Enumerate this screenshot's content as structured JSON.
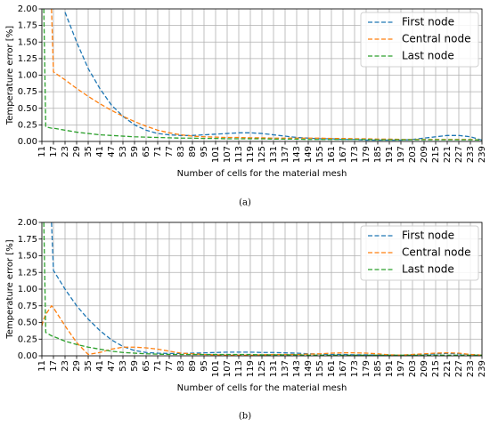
{
  "chart_data": [
    {
      "type": "line",
      "caption": "(a)",
      "xlabel": "Number of cells for the material mesh",
      "ylabel": "Temperature error [%]",
      "x": [
        11,
        12,
        13,
        16,
        17,
        23,
        29,
        35,
        41,
        47,
        53,
        59,
        65,
        71,
        77,
        83,
        89,
        95,
        101,
        107,
        113,
        119,
        125,
        131,
        137,
        143,
        149,
        155,
        161,
        167,
        173,
        179,
        185,
        191,
        197,
        203,
        209,
        215,
        221,
        227,
        233,
        239
      ],
      "xlim": [
        11,
        239
      ],
      "ylim": [
        0,
        2
      ],
      "xticks": [
        11,
        17,
        23,
        29,
        35,
        41,
        47,
        53,
        59,
        65,
        71,
        77,
        83,
        89,
        95,
        101,
        107,
        113,
        119,
        125,
        131,
        137,
        143,
        149,
        155,
        161,
        167,
        173,
        179,
        185,
        191,
        197,
        203,
        209,
        215,
        221,
        227,
        233,
        239
      ],
      "yticks": [
        {
          "value": 0,
          "label": "0.00"
        },
        {
          "value": 0.25,
          "label": "0.25"
        },
        {
          "value": 0.5,
          "label": "0.50"
        },
        {
          "value": 0.75,
          "label": "0.75"
        },
        {
          "value": 1,
          "label": "1.00"
        },
        {
          "value": 1.25,
          "label": "1.25"
        },
        {
          "value": 1.5,
          "label": "1.50"
        },
        {
          "value": 1.75,
          "label": "1.75"
        },
        {
          "value": 2,
          "label": "2.00"
        }
      ],
      "grid": true,
      "legend": "upper right",
      "line_style": "dashed",
      "series": [
        {
          "name": "First node",
          "color": "#1f77b4",
          "values": [
            null,
            null,
            null,
            null,
            null,
            1.95,
            1.5,
            1.1,
            0.8,
            0.55,
            0.38,
            0.25,
            0.17,
            0.12,
            0.1,
            0.09,
            0.09,
            0.1,
            0.11,
            0.12,
            0.13,
            0.13,
            0.12,
            0.1,
            0.08,
            0.06,
            0.05,
            0.04,
            0.04,
            0.03,
            0.03,
            0.02,
            0.02,
            0.02,
            0.02,
            0.03,
            0.05,
            0.07,
            0.09,
            0.09,
            0.07,
            0.02
          ]
        },
        {
          "name": "Central node",
          "color": "#ff7f0e",
          "values": [
            null,
            null,
            null,
            2.0,
            1.05,
            0.93,
            0.8,
            0.68,
            0.57,
            0.47,
            0.38,
            0.3,
            0.23,
            0.17,
            0.13,
            0.1,
            0.08,
            0.07,
            0.065,
            0.06,
            0.06,
            0.055,
            0.055,
            0.05,
            0.05,
            0.05,
            0.05,
            0.05,
            0.045,
            0.045,
            0.04,
            0.04,
            0.035,
            0.035,
            0.03,
            0.03,
            0.03,
            0.03,
            0.03,
            0.03,
            0.03,
            0.02
          ]
        },
        {
          "name": "Last node",
          "color": "#2ca02c",
          "values": [
            null,
            2.0,
            0.22,
            0.2,
            0.2,
            0.17,
            0.14,
            0.12,
            0.1,
            0.09,
            0.08,
            0.07,
            0.065,
            0.06,
            0.055,
            0.05,
            0.05,
            0.045,
            0.045,
            0.04,
            0.04,
            0.04,
            0.04,
            0.035,
            0.035,
            0.035,
            0.03,
            0.03,
            0.03,
            0.03,
            0.03,
            0.03,
            0.025,
            0.025,
            0.025,
            0.025,
            0.025,
            0.025,
            0.025,
            0.025,
            0.025,
            0.02
          ]
        }
      ]
    },
    {
      "type": "line",
      "caption": "(b)",
      "xlabel": "Number of cells for the material mesh",
      "ylabel": "Temperature error [%]",
      "x": [
        11,
        12,
        13,
        16,
        17,
        23,
        29,
        35,
        41,
        47,
        53,
        59,
        65,
        71,
        77,
        83,
        89,
        95,
        101,
        107,
        113,
        119,
        125,
        131,
        137,
        143,
        149,
        155,
        161,
        167,
        173,
        179,
        185,
        191,
        197,
        203,
        209,
        215,
        221,
        227,
        233,
        239
      ],
      "xlim": [
        11,
        239
      ],
      "ylim": [
        0,
        2
      ],
      "xticks": [
        11,
        17,
        23,
        29,
        35,
        41,
        47,
        53,
        59,
        65,
        71,
        77,
        83,
        89,
        95,
        101,
        107,
        113,
        119,
        125,
        131,
        137,
        143,
        149,
        155,
        161,
        167,
        173,
        179,
        185,
        191,
        197,
        203,
        209,
        215,
        221,
        227,
        233,
        239
      ],
      "yticks": [
        {
          "value": 0,
          "label": "0.00"
        },
        {
          "value": 0.25,
          "label": "0.25"
        },
        {
          "value": 0.5,
          "label": "0.50"
        },
        {
          "value": 0.75,
          "label": "0.75"
        },
        {
          "value": 1,
          "label": "1.00"
        },
        {
          "value": 1.25,
          "label": "1.25"
        },
        {
          "value": 1.5,
          "label": "1.50"
        },
        {
          "value": 1.75,
          "label": "1.75"
        },
        {
          "value": 2,
          "label": "2.00"
        }
      ],
      "grid": true,
      "legend": "upper right",
      "line_style": "dashed",
      "series": [
        {
          "name": "First node",
          "color": "#1f77b4",
          "values": [
            null,
            null,
            null,
            2.0,
            1.28,
            1.0,
            0.75,
            0.55,
            0.38,
            0.24,
            0.14,
            0.08,
            0.05,
            0.04,
            0.035,
            0.035,
            0.04,
            0.045,
            0.05,
            0.055,
            0.055,
            0.055,
            0.05,
            0.05,
            0.045,
            0.04,
            0.03,
            0.025,
            0.02,
            0.02,
            0.015,
            0.015,
            0.01,
            0.01,
            0.01,
            0.015,
            0.02,
            0.03,
            0.035,
            0.03,
            0.02,
            0.01
          ]
        },
        {
          "name": "Central node",
          "color": "#ff7f0e",
          "values": [
            0.45,
            0.55,
            0.62,
            0.75,
            0.72,
            0.45,
            0.2,
            0.02,
            0.05,
            0.1,
            0.13,
            0.13,
            0.12,
            0.1,
            0.07,
            0.04,
            0.03,
            0.02,
            0.015,
            0.01,
            0.01,
            0.01,
            0.015,
            0.02,
            0.02,
            0.02,
            0.025,
            0.03,
            0.04,
            0.045,
            0.045,
            0.04,
            0.03,
            0.015,
            0.01,
            0.02,
            0.03,
            0.04,
            0.045,
            0.04,
            0.02,
            0.01
          ]
        },
        {
          "name": "Last node",
          "color": "#2ca02c",
          "values": [
            null,
            2.0,
            0.35,
            0.3,
            0.29,
            0.22,
            0.17,
            0.13,
            0.1,
            0.07,
            0.05,
            0.04,
            0.03,
            0.025,
            0.02,
            0.02,
            0.02,
            0.02,
            0.02,
            0.02,
            0.02,
            0.02,
            0.015,
            0.015,
            0.015,
            0.015,
            0.01,
            0.01,
            0.01,
            0.01,
            0.01,
            0.01,
            0.01,
            0.01,
            0.01,
            0.01,
            0.01,
            0.01,
            0.01,
            0.01,
            0.01,
            0.01
          ]
        }
      ]
    }
  ]
}
